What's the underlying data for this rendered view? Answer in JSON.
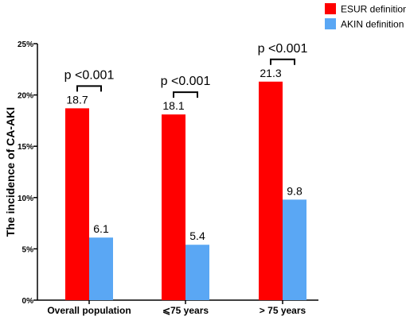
{
  "chart_data": {
    "type": "bar",
    "ylabel": "The incidence of CA-AKI",
    "xlabel": "",
    "ylim": [
      0,
      25
    ],
    "yticks": [
      0,
      5,
      10,
      15,
      20,
      25
    ],
    "ytick_suffix": "%",
    "categories": [
      "Overall population",
      "⩽75 years",
      "> 75 years"
    ],
    "series": [
      {
        "name": "ESUR definition",
        "color": "#ff0000",
        "values": [
          18.7,
          18.1,
          21.3
        ],
        "labels": [
          "18.7",
          "18.1",
          "21.3"
        ]
      },
      {
        "name": "AKIN definition",
        "color": "#5aa7f4",
        "values": [
          6.1,
          5.4,
          9.8
        ],
        "labels": [
          "6.1",
          "5.4",
          "9.8"
        ]
      }
    ],
    "annotations": [
      "p <0.001",
      "p <0.001",
      "p <0.001"
    ],
    "legend_position": "top-right",
    "grid": false
  }
}
